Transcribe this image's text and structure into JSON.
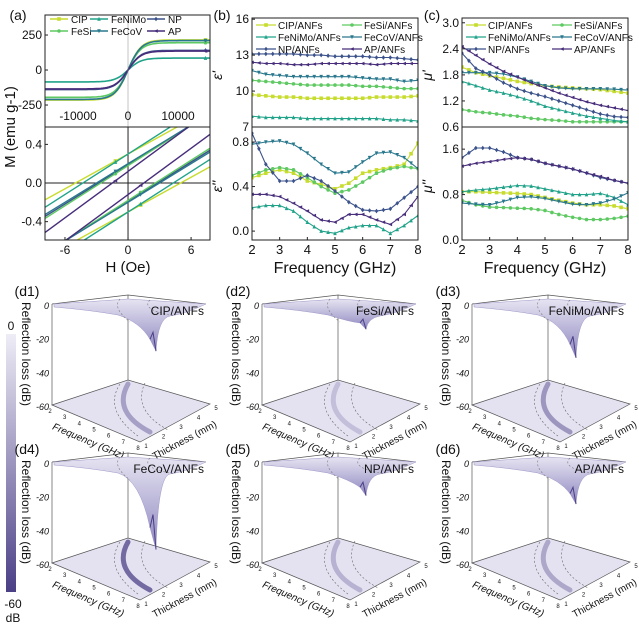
{
  "colors": {
    "CIP": "#c8dc2e",
    "FeSi": "#5ec962",
    "FeNiMo": "#21a38a",
    "FeCoV": "#2a788e",
    "NP": "#3b528b",
    "AP": "#472d7b",
    "surface": "#c9c6e3",
    "surface_dark": "#4b3f86",
    "floor": "#e4e2f1"
  },
  "chart_data": [
    {
      "id": "a",
      "panel_label": "(a)",
      "type": "line",
      "xlabel": "H (Oe)",
      "ylabel": "M (emu g-1)",
      "legend": [
        "CIP",
        "FeSi",
        "FeNiMo",
        "FeCoV",
        "NP",
        "AP"
      ],
      "legend_placement": "top",
      "top": {
        "xlim": [
          -16600,
          16400
        ],
        "ylim": [
          -407,
          393
        ],
        "xticks": [
          -10000,
          0,
          10000
        ],
        "yticks": [
          -250,
          0,
          250
        ],
        "saturation_magnetization": {
          "CIP": 215,
          "FeSi": 195,
          "FeNiMo": 85,
          "FeCoV": 210,
          "NP": 140,
          "AP": 135
        }
      },
      "bottom": {
        "xlim": [
          -7.9,
          7.8
        ],
        "ylim": [
          -0.59,
          0.58
        ],
        "xticks": [
          -6,
          0,
          6
        ],
        "yticks": [
          -0.4,
          0.0,
          0.4
        ],
        "coercivity": {
          "CIP": 5.0,
          "FeSi": 2.6,
          "FeNiMo": 4.3,
          "FeCoV": 3.0,
          "NP": 2.8,
          "AP": 1.5
        },
        "remanence": {
          "CIP": 0.3,
          "FeSi": 0.18,
          "FeNiMo": 0.3,
          "FeCoV": 0.2,
          "NP": 0.19,
          "AP": 0.12
        }
      }
    },
    {
      "id": "b",
      "panel_label": "(b)",
      "type": "line",
      "xlabel": "Frequency (GHz)",
      "x": [
        2,
        2.5,
        3,
        3.5,
        4,
        4.5,
        5,
        5.5,
        6,
        6.5,
        7,
        7.5,
        8
      ],
      "xlim": [
        2,
        8
      ],
      "xticks": [
        2,
        3,
        4,
        5,
        6,
        7,
        8
      ],
      "legend": [
        "CIP/ANFs",
        "FeSi/ANFs",
        "FeNiMo/ANFs",
        "FeCoV/ANFs",
        "NP/ANFs",
        "AP/ANFs"
      ],
      "top": {
        "ylabel": "ε'",
        "ylim": [
          7,
          16.1
        ],
        "yticks": [
          7,
          10,
          13,
          16
        ],
        "series": [
          {
            "name": "CIP/ANFs",
            "key": "CIP",
            "values": [
              9.7,
              9.6,
              9.5,
              9.5,
              9.4,
              9.4,
              9.4,
              9.4,
              9.4,
              9.5,
              9.5,
              9.5,
              9.6
            ]
          },
          {
            "name": "FeSi/ANFs",
            "key": "FeSi",
            "values": [
              10.9,
              10.8,
              10.7,
              10.6,
              10.5,
              10.5,
              10.5,
              10.5,
              10.4,
              10.4,
              10.3,
              10.2,
              10.2
            ]
          },
          {
            "name": "FeNiMo/ANFs",
            "key": "FeNiMo",
            "values": [
              7.9,
              7.8,
              7.8,
              7.8,
              7.7,
              7.7,
              7.7,
              7.7,
              7.7,
              7.7,
              7.6,
              7.6,
              7.5
            ]
          },
          {
            "name": "FeCoV/ANFs",
            "key": "FeCoV",
            "values": [
              11.7,
              11.4,
              11.3,
              11.2,
              11.2,
              11.2,
              11.2,
              11.2,
              11.1,
              11.0,
              11.0,
              10.8,
              10.9
            ]
          },
          {
            "name": "NP/ANFs",
            "key": "NP",
            "values": [
              13.1,
              13.1,
              13.1,
              13.1,
              13.0,
              13.0,
              12.9,
              12.9,
              12.9,
              12.8,
              12.8,
              12.7,
              12.6
            ]
          },
          {
            "name": "AP/ANFs",
            "key": "AP",
            "values": [
              12.4,
              12.3,
              12.3,
              12.2,
              12.2,
              12.3,
              12.3,
              12.3,
              12.3,
              12.2,
              12.3,
              12.3,
              12.3
            ]
          }
        ]
      },
      "bottom": {
        "ylabel": "ε''",
        "ylim": [
          -0.08,
          0.935
        ],
        "yticks": [
          0.0,
          0.4,
          0.8
        ],
        "series": [
          {
            "name": "CIP/ANFs",
            "key": "CIP",
            "values": [
              0.48,
              0.52,
              0.55,
              0.52,
              0.45,
              0.42,
              0.38,
              0.43,
              0.52,
              0.55,
              0.57,
              0.6,
              0.79
            ]
          },
          {
            "name": "FeSi/ANFs",
            "key": "FeSi",
            "values": [
              0.5,
              0.55,
              0.57,
              0.55,
              0.48,
              0.4,
              0.34,
              0.37,
              0.44,
              0.52,
              0.56,
              0.58,
              0.56
            ]
          },
          {
            "name": "FeNiMo/ANFs",
            "key": "FeNiMo",
            "values": [
              0.21,
              0.23,
              0.23,
              0.18,
              0.08,
              0.0,
              -0.02,
              0.03,
              0.05,
              0.05,
              -0.02,
              0.05,
              0.14
            ]
          },
          {
            "name": "FeCoV/ANFs",
            "key": "FeCoV",
            "values": [
              0.78,
              0.8,
              0.81,
              0.78,
              0.7,
              0.6,
              0.52,
              0.53,
              0.62,
              0.7,
              0.71,
              0.66,
              0.56
            ]
          },
          {
            "name": "NP/ANFs",
            "key": "NP",
            "values": [
              0.88,
              0.6,
              0.45,
              0.45,
              0.5,
              0.45,
              0.36,
              0.26,
              0.19,
              0.18,
              0.2,
              0.3,
              0.4
            ]
          },
          {
            "name": "AP/ANFs",
            "key": "AP",
            "values": [
              0.33,
              0.33,
              0.31,
              0.25,
              0.18,
              0.1,
              0.08,
              0.15,
              0.15,
              0.1,
              0.06,
              0.15,
              0.31
            ]
          }
        ]
      }
    },
    {
      "id": "c",
      "panel_label": "(c)",
      "type": "line",
      "xlabel": "Frequency (GHz)",
      "x": [
        2,
        2.5,
        3,
        3.5,
        4,
        4.5,
        5,
        5.5,
        6,
        6.5,
        7,
        7.5,
        8
      ],
      "xlim": [
        2,
        8
      ],
      "xticks": [
        2,
        3,
        4,
        5,
        6,
        7,
        8
      ],
      "legend": [
        "CIP/ANFs",
        "FeSi/ANFs",
        "FeNiMo/ANFs",
        "FeCoV/ANFs",
        "NP/ANFs",
        "AP/ANFs"
      ],
      "top": {
        "ylabel": "μ'",
        "ylim": [
          0.6,
          3.11
        ],
        "yticks": [
          0.6,
          1.2,
          1.8,
          2.4,
          3.0
        ],
        "series": [
          {
            "name": "CIP/ANFs",
            "key": "CIP",
            "values": [
              1.98,
              1.85,
              1.78,
              1.72,
              1.65,
              1.6,
              1.55,
              1.52,
              1.5,
              1.48,
              1.46,
              1.42,
              1.38
            ]
          },
          {
            "name": "FeSi/ANFs",
            "key": "FeSi",
            "values": [
              1.0,
              0.95,
              0.92,
              0.88,
              0.85,
              0.8,
              0.77,
              0.75,
              0.72,
              0.72,
              0.72,
              0.72,
              0.72
            ]
          },
          {
            "name": "FeNiMo/ANFs",
            "key": "FeNiMo",
            "values": [
              1.65,
              1.55,
              1.45,
              1.38,
              1.3,
              1.2,
              1.08,
              1.0,
              0.92,
              0.85,
              0.8,
              0.75,
              0.72
            ]
          },
          {
            "name": "FeCoV/ANFs",
            "key": "FeCoV",
            "values": [
              1.85,
              1.85,
              1.85,
              1.82,
              1.75,
              1.65,
              1.55,
              1.5,
              1.48,
              1.48,
              1.48,
              1.47,
              1.45
            ]
          },
          {
            "name": "NP/ANFs",
            "key": "NP",
            "values": [
              2.3,
              1.95,
              1.8,
              1.62,
              1.48,
              1.38,
              1.3,
              1.2,
              1.1,
              1.0,
              0.9,
              0.84,
              0.82
            ]
          },
          {
            "name": "AP/ANFs",
            "key": "AP",
            "values": [
              2.45,
              2.25,
              2.05,
              1.88,
              1.75,
              1.62,
              1.5,
              1.38,
              1.28,
              1.18,
              1.1,
              1.04,
              0.98
            ]
          }
        ]
      },
      "bottom": {
        "ylabel": "μ''",
        "ylim": [
          0,
          1.99
        ],
        "yticks": [
          0.0,
          0.8,
          1.6
        ],
        "series": [
          {
            "name": "CIP/ANFs",
            "key": "CIP",
            "values": [
              0.85,
              0.85,
              0.84,
              0.83,
              0.82,
              0.8,
              0.75,
              0.7,
              0.65,
              0.62,
              0.62,
              0.6,
              0.55
            ]
          },
          {
            "name": "FeSi/ANFs",
            "key": "FeSi",
            "values": [
              0.7,
              0.62,
              0.58,
              0.57,
              0.56,
              0.55,
              0.52,
              0.45,
              0.4,
              0.36,
              0.36,
              0.38,
              0.42
            ]
          },
          {
            "name": "FeNiMo/ANFs",
            "key": "FeNiMo",
            "values": [
              0.85,
              0.88,
              0.9,
              0.93,
              0.96,
              0.95,
              0.9,
              0.85,
              0.8,
              0.8,
              0.82,
              0.75,
              0.62
            ]
          },
          {
            "name": "FeCoV/ANFs",
            "key": "FeCoV",
            "values": [
              0.65,
              0.63,
              0.62,
              0.68,
              0.75,
              0.76,
              0.73,
              0.68,
              0.63,
              0.62,
              0.65,
              0.72,
              0.83
            ]
          },
          {
            "name": "NP/ANFs",
            "key": "NP",
            "values": [
              1.45,
              1.62,
              1.62,
              1.55,
              1.45,
              1.42,
              1.35,
              1.3,
              1.25,
              1.18,
              1.1,
              1.05,
              1.0
            ]
          },
          {
            "name": "AP/ANFs",
            "key": "AP",
            "values": [
              1.3,
              1.35,
              1.38,
              1.42,
              1.45,
              1.42,
              1.35,
              1.3,
              1.25,
              1.18,
              1.12,
              1.05,
              1.0
            ]
          }
        ]
      }
    },
    {
      "id": "d",
      "type": "surface3d",
      "zlabel": "Reflection loss (dB)",
      "xlabel": "Frequency (GHz)",
      "ylabel": "Thickness (mm)",
      "zticks": [
        "0",
        "-20",
        "-40",
        "-60"
      ],
      "xticks": [
        "2",
        "3",
        "4",
        "5",
        "6",
        "7",
        "8"
      ],
      "yticks": [
        "1",
        "2",
        "3",
        "4",
        "5"
      ],
      "colorbar": {
        "max_label": "0",
        "min_label": "-60",
        "unit": "dB"
      },
      "panels": [
        {
          "panel_label": "(d1)",
          "name": "CIP/ANFs",
          "min_rl_approx": -28
        },
        {
          "panel_label": "(d2)",
          "name": "FeSi/ANFs",
          "min_rl_approx": -15
        },
        {
          "panel_label": "(d3)",
          "name": "FeNiMo/ANFs",
          "min_rl_approx": -32
        },
        {
          "panel_label": "(d4)",
          "name": "FeCoV/ANFs",
          "min_rl_approx": -52
        },
        {
          "panel_label": "(d5)",
          "name": "NP/ANFs",
          "min_rl_approx": -20
        },
        {
          "panel_label": "(d6)",
          "name": "AP/ANFs",
          "min_rl_approx": -25
        }
      ]
    }
  ]
}
